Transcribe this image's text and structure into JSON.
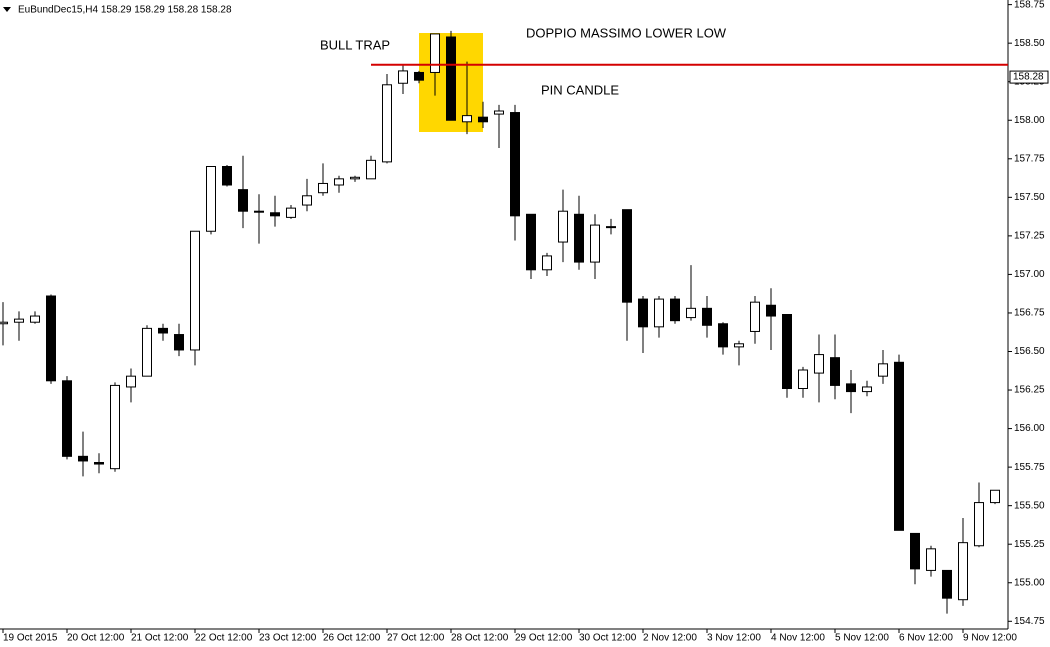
{
  "chart_data": {
    "type": "candlestick",
    "title": "EuBundDec15,H4  158.29 158.29 158.28 158.28",
    "annotations": [
      "BULL TRAP",
      "DOPPIO MASSIMO LOWER LOW",
      "PIN CANDLE"
    ],
    "categories": [
      "19 Oct 2015",
      null,
      null,
      null,
      "20 Oct 12:00",
      null,
      null,
      null,
      "21 Oct 12:00",
      null,
      null,
      null,
      "22 Oct 12:00",
      null,
      null,
      null,
      "23 Oct 12:00",
      null,
      null,
      null,
      "26 Oct 12:00",
      null,
      null,
      null,
      "27 Oct 12:00",
      null,
      null,
      null,
      "28 Oct 12:00",
      null,
      null,
      null,
      "29 Oct 12:00",
      null,
      null,
      null,
      "30 Oct 12:00",
      null,
      null,
      null,
      "2 Nov 12:00",
      null,
      null,
      null,
      "3 Nov 12:00",
      null,
      null,
      null,
      "4 Nov 12:00",
      null,
      null,
      null,
      "5 Nov 12:00",
      null,
      null,
      null,
      "6 Nov 12:00",
      null,
      null,
      null,
      "9 Nov 12:00",
      null,
      null
    ],
    "open": [
      156.68,
      156.69,
      156.69,
      156.86,
      156.31,
      155.82,
      155.78,
      155.74,
      156.27,
      156.34,
      156.65,
      156.61,
      156.51,
      157.28,
      157.7,
      157.55,
      157.41,
      157.4,
      157.37,
      157.45,
      157.53,
      157.58,
      157.62,
      157.62,
      157.73,
      158.24,
      158.31,
      158.31,
      158.54,
      157.99,
      158.02,
      158.04,
      158.05,
      157.39,
      157.03,
      157.21,
      157.39,
      157.08,
      157.31,
      157.42,
      156.84,
      156.66,
      156.84,
      156.72,
      156.78,
      156.68,
      156.53,
      156.63,
      156.8,
      156.74,
      156.26,
      156.36,
      156.46,
      156.29,
      156.24,
      156.34,
      156.43,
      155.32,
      155.08,
      155.08,
      154.89,
      155.24,
      155.52
    ],
    "high": [
      156.82,
      156.76,
      156.76,
      156.87,
      156.34,
      155.98,
      155.84,
      156.3,
      156.39,
      156.67,
      156.68,
      156.68,
      157.28,
      157.7,
      157.71,
      157.77,
      157.52,
      157.51,
      157.45,
      157.62,
      157.72,
      157.64,
      157.64,
      157.77,
      158.3,
      158.36,
      158.32,
      158.56,
      158.58,
      158.38,
      158.12,
      158.1,
      158.1,
      157.39,
      157.14,
      157.55,
      157.51,
      157.39,
      157.36,
      157.42,
      156.86,
      156.86,
      156.86,
      157.06,
      156.86,
      156.69,
      156.57,
      156.86,
      156.91,
      156.74,
      156.4,
      156.61,
      156.61,
      156.38,
      156.31,
      156.51,
      156.48,
      155.32,
      155.24,
      155.08,
      155.42,
      155.65,
      155.6
    ],
    "low": [
      156.54,
      156.57,
      156.68,
      156.29,
      155.8,
      155.69,
      155.71,
      155.72,
      156.17,
      156.34,
      156.57,
      156.47,
      156.41,
      157.26,
      157.57,
      157.3,
      157.2,
      157.31,
      157.36,
      157.41,
      157.51,
      157.53,
      157.6,
      157.62,
      157.72,
      158.17,
      158.24,
      158.16,
      158.0,
      157.91,
      157.95,
      157.82,
      157.22,
      156.97,
      156.99,
      157.08,
      157.03,
      156.97,
      157.26,
      156.57,
      156.49,
      156.59,
      156.68,
      156.7,
      156.59,
      156.48,
      156.41,
      156.55,
      156.51,
      156.2,
      156.2,
      156.17,
      156.19,
      156.1,
      156.21,
      156.29,
      155.34,
      154.99,
      155.04,
      154.8,
      154.85,
      155.23,
      155.51
    ],
    "close": [
      156.69,
      156.71,
      156.73,
      156.31,
      155.82,
      155.79,
      155.77,
      156.28,
      156.34,
      156.65,
      156.62,
      156.51,
      157.28,
      157.7,
      157.58,
      157.41,
      157.41,
      157.38,
      157.43,
      157.51,
      157.59,
      157.62,
      157.63,
      157.74,
      158.23,
      158.32,
      158.26,
      158.56,
      158.0,
      158.03,
      157.99,
      158.06,
      157.38,
      157.03,
      157.12,
      157.41,
      157.08,
      157.32,
      157.31,
      156.82,
      156.66,
      156.84,
      156.7,
      156.78,
      156.67,
      156.53,
      156.55,
      156.82,
      156.73,
      156.26,
      156.38,
      156.48,
      156.28,
      156.24,
      156.27,
      156.42,
      155.34,
      155.09,
      155.22,
      154.9,
      155.26,
      155.52,
      155.6
    ],
    "horizontal_line": 158.36,
    "current_price": 158.28,
    "ylim": [
      154.7,
      158.78
    ],
    "yticks": [
      {
        "value": 154.75,
        "label": "154.75"
      },
      {
        "value": 155,
        "label": "155.00"
      },
      {
        "value": 155.25,
        "label": "155.25"
      },
      {
        "value": 155.5,
        "label": "155.50"
      },
      {
        "value": 155.75,
        "label": "155.75"
      },
      {
        "value": 156,
        "label": "156.00"
      },
      {
        "value": 156.25,
        "label": "156.25"
      },
      {
        "value": 156.5,
        "label": "156.50"
      },
      {
        "value": 156.75,
        "label": "156.75"
      },
      {
        "value": 157,
        "label": "157.00"
      },
      {
        "value": 157.25,
        "label": "157.25"
      },
      {
        "value": 157.5,
        "label": "157.50"
      },
      {
        "value": 157.75,
        "label": "157.75"
      },
      {
        "value": 158,
        "label": "158.00"
      },
      {
        "value": 158.25,
        "label": "158.25"
      },
      {
        "value": 158.5,
        "label": "158.50"
      },
      {
        "value": 158.75,
        "label": "158.75"
      }
    ],
    "up_color": "#ffffff",
    "down_color": "#000000",
    "line_color": "#d40000",
    "highlight_color": "#ffd700"
  }
}
